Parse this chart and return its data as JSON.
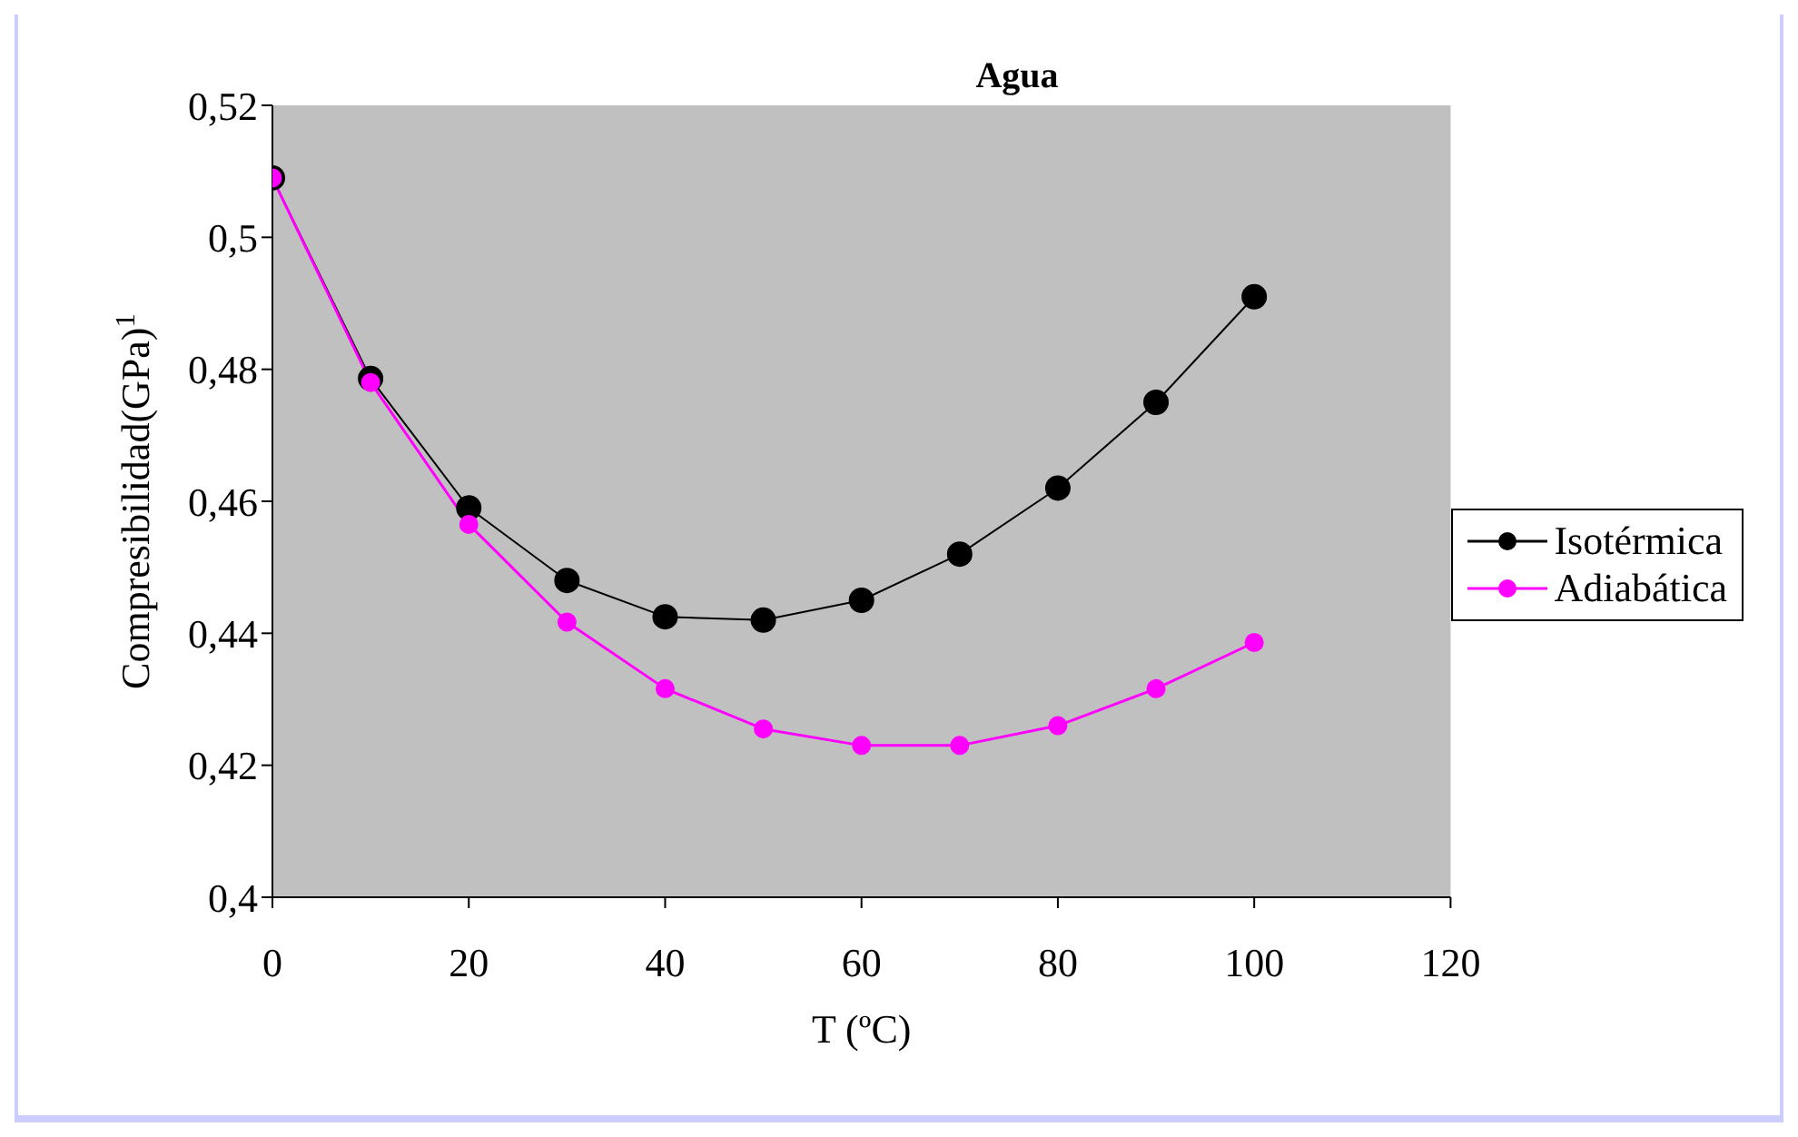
{
  "chart_data": {
    "type": "line",
    "title": "Agua",
    "xlabel": "T  (ºC)",
    "ylabel": "Compresibilidad(GPa)$^{1}$",
    "x": [
      0,
      10,
      20,
      30,
      40,
      50,
      60,
      70,
      80,
      90,
      100
    ],
    "series": [
      {
        "name": "Isotérmica",
        "color": "#000000",
        "values": [
          0.509,
          0.4786,
          0.459,
          0.448,
          0.4425,
          0.442,
          0.445,
          0.452,
          0.462,
          0.475,
          0.491
        ]
      },
      {
        "name": "Adiabática",
        "color": "#ff00ff",
        "values": [
          0.509,
          0.478,
          0.4565,
          0.4417,
          0.4316,
          0.4255,
          0.423,
          0.423,
          0.426,
          0.4316,
          0.4386
        ]
      }
    ],
    "xlim": [
      0,
      120
    ],
    "xticks": [
      0,
      20,
      40,
      60,
      80,
      100,
      120
    ],
    "ylim": [
      0.4,
      0.52
    ],
    "yticks": [
      {
        "value": 0.4,
        "label": "0,4"
      },
      {
        "value": 0.42,
        "label": "0,42"
      },
      {
        "value": 0.44,
        "label": "0,44"
      },
      {
        "value": 0.46,
        "label": "0,46"
      },
      {
        "value": 0.48,
        "label": "0,48"
      },
      {
        "value": 0.5,
        "label": "0,5"
      },
      {
        "value": 0.52,
        "label": "0,52"
      }
    ],
    "grid": false,
    "legend": "right",
    "marker": "circle",
    "line_style": "solid"
  }
}
